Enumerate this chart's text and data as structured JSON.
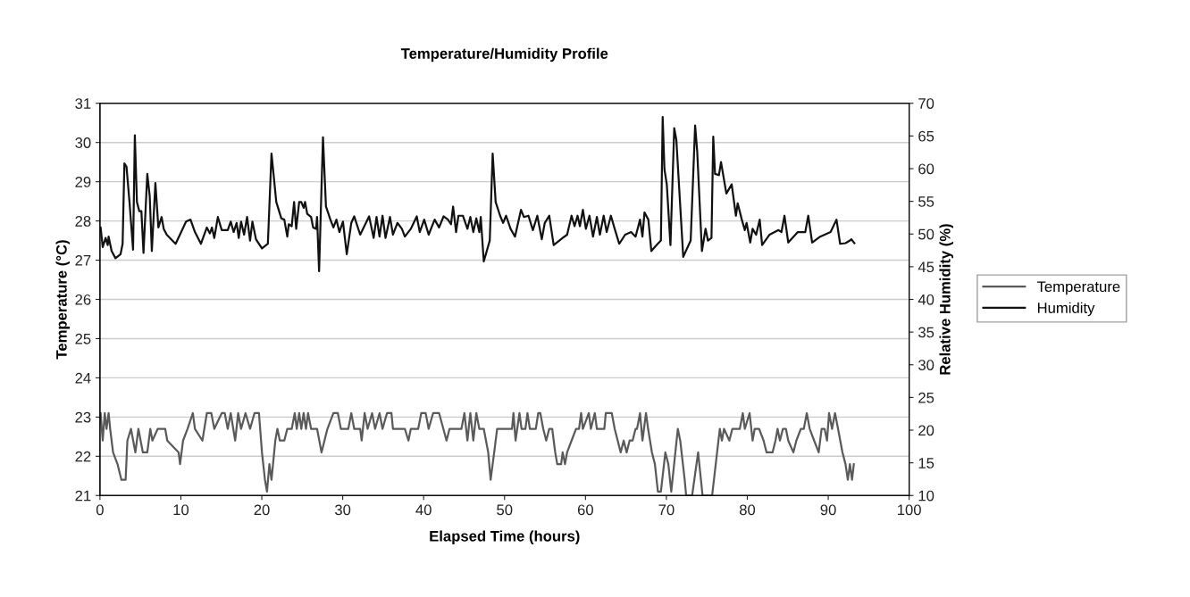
{
  "chart_data": {
    "type": "line",
    "title": "Temperature/Humidity Profile",
    "xlabel": "Elapsed Time (hours)",
    "ylabel": "Temperature (°C)",
    "y2label": "Relative Humidity (%)",
    "xlim": [
      0,
      100
    ],
    "xticks": [
      0,
      10,
      20,
      30,
      40,
      50,
      60,
      70,
      80,
      90,
      100
    ],
    "ylim": [
      21,
      31
    ],
    "yticks": [
      21,
      22,
      23,
      24,
      25,
      26,
      27,
      28,
      29,
      30,
      31
    ],
    "y2lim": [
      10,
      70
    ],
    "y2ticks": [
      10,
      15,
      20,
      25,
      30,
      35,
      40,
      45,
      50,
      55,
      60,
      65,
      70
    ],
    "grid": "y",
    "legend": "right",
    "marker": "none",
    "line_style": "solid",
    "series": [
      {
        "name": "Temperature",
        "color": "#5a5a5a",
        "x": [
          0.08,
          0.34,
          0.59,
          0.81,
          1.07,
          1.26,
          1.62,
          2.17,
          2.65,
          3.17,
          3.39,
          3.83,
          4.38,
          4.75,
          5.3,
          5.85,
          6.22,
          6.48,
          7.14,
          8.06,
          8.32,
          9.72,
          9.9,
          10.27,
          10.82,
          11.48,
          11.74,
          12.66,
          13.21,
          13.76,
          14.13,
          15.05,
          15.42,
          15.79,
          16.16,
          16.71,
          17.08,
          17.44,
          17.99,
          18.55,
          19.1,
          19.65,
          20.02,
          20.39,
          20.64,
          20.94,
          21.2,
          21.67,
          21.93,
          22.23,
          22.78,
          23.15,
          23.7,
          24.07,
          24.32,
          24.62,
          24.88,
          25.17,
          25.46,
          25.72,
          26.09,
          26.83,
          27.38,
          28.11,
          28.85,
          29.4,
          29.77,
          30.69,
          31.06,
          31.42,
          32.16,
          32.34,
          32.71,
          33.08,
          33.63,
          34.0,
          34.55,
          34.92,
          35.47,
          36.02,
          36.21,
          37.68,
          38.12,
          38.42,
          39.33,
          39.7,
          40.25,
          40.62,
          41.17,
          41.91,
          42.83,
          43.2,
          44.67,
          45.04,
          45.41,
          45.77,
          46.14,
          46.51,
          46.88,
          47.43,
          47.98,
          48.28,
          48.72,
          49.08,
          50.92,
          51.1,
          51.36,
          51.84,
          52.1,
          52.58,
          52.83,
          53.13,
          53.86,
          54.16,
          54.42,
          54.78,
          55.15,
          55.52,
          55.89,
          56.26,
          56.51,
          56.99,
          57.18,
          57.47,
          57.73,
          58.28,
          58.83,
          59.2,
          59.46,
          59.68,
          60.41,
          60.67,
          61.15,
          61.41,
          62.33,
          62.51,
          63.25,
          63.61,
          63.98,
          64.35,
          64.72,
          65.09,
          65.45,
          65.82,
          66.19,
          66.37,
          66.74,
          67.04,
          67.48,
          67.74,
          68.21,
          68.58,
          68.95,
          69.32,
          69.87,
          70.24,
          70.6,
          71.41,
          71.71,
          72.26,
          72.44,
          73.18,
          73.92,
          74.47,
          75.65,
          76.6,
          76.86,
          77.12,
          77.78,
          78.15,
          79.07,
          79.44,
          79.69,
          80.28,
          80.65,
          80.91,
          81.46,
          82.01,
          82.38,
          83.12,
          83.48,
          83.74,
          84.03,
          84.4,
          84.77,
          85.06,
          85.69,
          86.06,
          86.61,
          86.98,
          87.35,
          87.71,
          88.26,
          88.82,
          89.18,
          89.55,
          89.85,
          90.1,
          90.47,
          90.84,
          91.21,
          91.76,
          92.13,
          92.42,
          92.68,
          92.94,
          93.16
        ],
        "values": [
          23.1,
          22.4,
          23.1,
          22.7,
          23.1,
          22.7,
          22.1,
          21.8,
          21.4,
          21.4,
          22.4,
          22.7,
          22.1,
          22.7,
          22.1,
          22.1,
          22.7,
          22.4,
          22.7,
          22.7,
          22.4,
          22.1,
          21.8,
          22.4,
          22.7,
          23.1,
          22.7,
          22.4,
          23.1,
          23.1,
          22.7,
          23.1,
          23.1,
          22.7,
          23.1,
          22.4,
          23.1,
          22.7,
          23.1,
          22.7,
          23.1,
          23.1,
          22.1,
          21.4,
          21.1,
          21.8,
          21.4,
          22.4,
          22.7,
          22.4,
          22.4,
          22.7,
          22.7,
          23.1,
          22.7,
          23.1,
          22.7,
          23.1,
          22.7,
          23.1,
          22.7,
          22.7,
          22.1,
          22.7,
          23.1,
          23.1,
          22.7,
          22.7,
          23.1,
          22.7,
          22.7,
          22.4,
          23.1,
          22.7,
          23.1,
          22.7,
          23.1,
          22.7,
          23.1,
          23.1,
          22.7,
          22.7,
          22.4,
          22.7,
          22.7,
          23.1,
          23.1,
          22.7,
          23.1,
          23.1,
          22.4,
          22.7,
          22.7,
          23.1,
          22.4,
          23.1,
          22.4,
          23.1,
          22.7,
          22.7,
          22.1,
          21.4,
          22.1,
          22.7,
          22.7,
          23.1,
          22.4,
          23.1,
          22.7,
          22.7,
          23.1,
          22.7,
          22.7,
          23.1,
          23.1,
          22.7,
          22.4,
          22.7,
          22.7,
          22.1,
          21.8,
          21.8,
          22.1,
          21.8,
          22.1,
          22.4,
          22.7,
          22.7,
          23.1,
          22.7,
          23.1,
          22.7,
          23.1,
          22.7,
          22.7,
          23.1,
          23.1,
          22.7,
          22.4,
          22.1,
          22.4,
          22.1,
          22.4,
          22.4,
          22.7,
          22.7,
          23.1,
          22.4,
          23.1,
          22.7,
          22.1,
          21.8,
          21.1,
          21.1,
          22.1,
          21.8,
          21.1,
          22.7,
          22.4,
          21.4,
          21.0,
          21.0,
          22.1,
          21.0,
          21.0,
          22.7,
          22.4,
          22.7,
          22.4,
          22.7,
          22.7,
          23.1,
          22.7,
          23.1,
          22.4,
          22.7,
          22.7,
          22.4,
          22.1,
          22.1,
          22.4,
          22.7,
          22.4,
          22.7,
          22.7,
          22.4,
          22.1,
          22.4,
          22.7,
          22.7,
          23.1,
          22.7,
          22.4,
          22.1,
          22.7,
          22.7,
          22.4,
          23.1,
          22.7,
          23.1,
          22.7,
          22.1,
          21.8,
          21.4,
          21.8,
          21.4,
          21.8
        ]
      },
      {
        "name": "Humidity",
        "color": "#111111",
        "axis": "y2",
        "x": [
          0.08,
          0.34,
          0.7,
          0.96,
          1.07,
          1.44,
          1.92,
          2.54,
          2.8,
          3.02,
          3.28,
          3.65,
          4.09,
          4.31,
          4.57,
          4.86,
          5.12,
          5.38,
          5.85,
          6.15,
          6.41,
          6.85,
          7.22,
          7.62,
          7.88,
          8.25,
          9.35,
          10.64,
          11.19,
          11.74,
          12.48,
          13.21,
          13.58,
          13.84,
          14.13,
          14.57,
          15.05,
          15.79,
          16.16,
          16.52,
          16.89,
          17.15,
          17.44,
          17.81,
          18.18,
          18.55,
          18.84,
          19.28,
          20.02,
          20.75,
          21.2,
          21.79,
          22.41,
          22.78,
          23.15,
          23.33,
          23.7,
          23.99,
          24.25,
          24.62,
          24.88,
          25.17,
          25.35,
          25.61,
          26.09,
          26.35,
          26.71,
          26.83,
          27.08,
          27.56,
          27.93,
          28.48,
          28.85,
          29.22,
          29.59,
          30.03,
          30.5,
          31.06,
          31.42,
          32.16,
          33.26,
          33.82,
          34.18,
          34.55,
          34.92,
          35.29,
          35.84,
          36.21,
          36.76,
          37.31,
          37.68,
          38.42,
          39.15,
          39.52,
          40.07,
          40.62,
          41.36,
          41.91,
          42.46,
          43.01,
          43.38,
          43.64,
          44.01,
          44.3,
          44.85,
          45.41,
          45.77,
          46.14,
          46.51,
          46.88,
          47.06,
          47.43,
          48.17,
          48.53,
          48.9,
          49.45,
          49.82,
          50.19,
          50.74,
          51.29,
          52.03,
          52.39,
          52.95,
          53.5,
          54.05,
          54.6,
          54.97,
          55.52,
          56.07,
          57.18,
          57.73,
          58.28,
          58.65,
          59.02,
          59.31,
          59.68,
          60.05,
          60.49,
          60.93,
          61.41,
          61.78,
          62.25,
          62.62,
          63.14,
          63.61,
          64.17,
          64.9,
          65.64,
          66.19,
          66.74,
          67.04,
          67.29,
          67.77,
          68.14,
          68.77,
          69.32,
          69.54,
          69.76,
          70.05,
          70.5,
          70.97,
          71.23,
          72.08,
          73.0,
          73.55,
          73.81,
          74.39,
          74.84,
          75.13,
          75.57,
          75.79,
          76.01,
          76.49,
          76.75,
          77.41,
          78.07,
          78.59,
          78.81,
          79.32,
          79.69,
          79.91,
          80.36,
          80.65,
          81.09,
          81.53,
          81.83,
          82.75,
          83.85,
          84.22,
          84.59,
          85.06,
          86.24,
          87.16,
          87.53,
          88.01,
          89.0,
          90.29,
          91.02,
          91.47,
          92.13,
          92.68,
          92.86,
          93.23
        ],
        "values": [
          51.0,
          48.0,
          49.4,
          48.3,
          49.6,
          47.4,
          46.3,
          46.9,
          48.5,
          60.8,
          60.3,
          54.9,
          47.6,
          65.1,
          54.9,
          53.5,
          53.5,
          47.1,
          59.2,
          55.8,
          47.4,
          57.8,
          51.0,
          52.6,
          50.8,
          49.9,
          48.5,
          51.9,
          52.2,
          50.3,
          48.5,
          51.0,
          50.1,
          51.0,
          49.4,
          52.6,
          50.6,
          50.6,
          51.9,
          50.3,
          51.7,
          49.4,
          51.9,
          49.9,
          52.6,
          49.0,
          51.9,
          49.2,
          47.8,
          48.5,
          62.3,
          54.9,
          52.4,
          52.2,
          49.6,
          51.5,
          51.2,
          54.9,
          50.8,
          54.9,
          54.9,
          54.0,
          54.9,
          53.1,
          52.6,
          51.0,
          50.8,
          52.6,
          44.3,
          64.8,
          54.2,
          52.2,
          51.0,
          52.2,
          50.3,
          51.9,
          46.9,
          51.7,
          52.7,
          49.9,
          52.7,
          49.4,
          52.6,
          49.6,
          52.8,
          49.4,
          52.6,
          49.9,
          51.7,
          50.8,
          49.6,
          50.8,
          52.7,
          50.3,
          52.2,
          49.9,
          52.2,
          51.0,
          52.7,
          52.2,
          51.5,
          54.2,
          50.3,
          52.8,
          52.8,
          50.8,
          52.6,
          50.3,
          52.4,
          50.3,
          52.6,
          45.8,
          49.0,
          62.3,
          54.9,
          52.8,
          51.7,
          52.8,
          50.8,
          49.6,
          53.7,
          52.6,
          52.8,
          50.6,
          52.8,
          49.2,
          51.7,
          52.8,
          48.3,
          49.4,
          49.9,
          52.8,
          51.2,
          52.8,
          51.2,
          53.7,
          50.8,
          52.8,
          49.6,
          52.6,
          49.9,
          52.8,
          50.3,
          52.8,
          50.8,
          48.5,
          49.9,
          50.3,
          49.6,
          52.2,
          49.6,
          53.3,
          52.2,
          47.4,
          48.3,
          49.0,
          67.9,
          59.9,
          57.6,
          48.3,
          66.2,
          64.4,
          46.5,
          49.0,
          66.6,
          62.6,
          47.4,
          50.8,
          49.0,
          49.4,
          64.9,
          59.2,
          59.0,
          61.0,
          56.2,
          57.6,
          52.8,
          54.7,
          52.2,
          50.6,
          51.7,
          48.7,
          50.8,
          49.9,
          52.2,
          48.3,
          49.9,
          50.6,
          50.3,
          52.8,
          48.7,
          50.3,
          50.3,
          52.8,
          48.7,
          49.6,
          50.3,
          52.2,
          48.5,
          48.6,
          49.0,
          49.2,
          48.6
        ]
      }
    ]
  }
}
